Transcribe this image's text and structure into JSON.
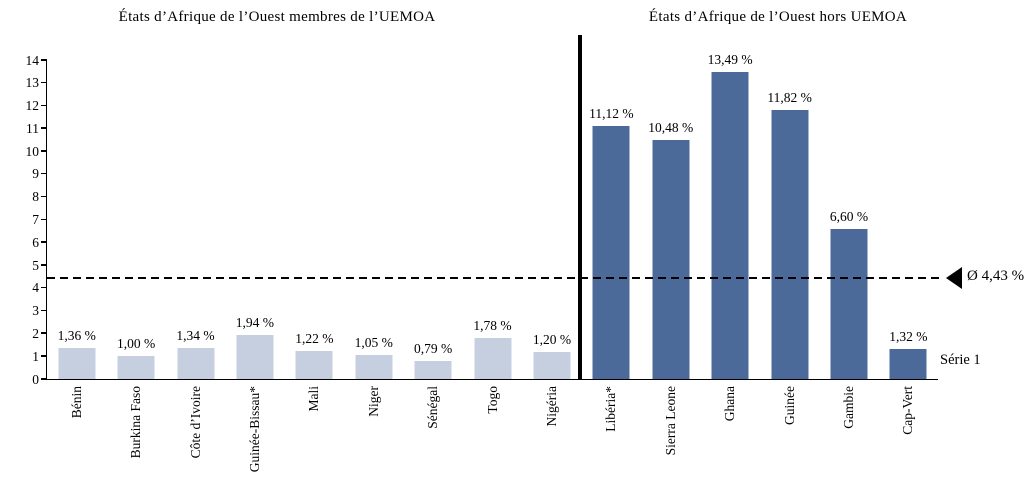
{
  "chart_data": {
    "type": "bar",
    "groups": [
      {
        "title": "États d’Afrique de l’Ouest membres de l’UEMOA",
        "count": 9,
        "bar_color": "#c6cfe0"
      },
      {
        "title": "États d’Afrique de l’Ouest hors UEMOA",
        "count": 6,
        "bar_color": "#4c6a99"
      }
    ],
    "categories": [
      "Bénin",
      "Burkina Faso",
      "Côte d’Ivoire",
      "Guinée-Bissau*",
      "Mali",
      "Niger",
      "Sénégal",
      "Togo",
      "Nigéria",
      "Libéria*",
      "Sierra Leone",
      "Ghana",
      "Guinée",
      "Gambie",
      "Cap-Vert"
    ],
    "values": [
      1.36,
      1.0,
      1.34,
      1.94,
      1.22,
      1.05,
      0.79,
      1.78,
      1.2,
      11.12,
      10.48,
      13.49,
      11.82,
      6.6,
      1.32
    ],
    "value_labels": [
      "1,36 %",
      "1,00 %",
      "1,34 %",
      "1,94 %",
      "1,22 %",
      "1,05 %",
      "0,79 %",
      "1,78 %",
      "1,20 %",
      "11,12 %",
      "10,48 %",
      "13,49 %",
      "11,82 %",
      "6,60 %",
      "1,32 %"
    ],
    "ylim": [
      0,
      14
    ],
    "y_ticks": [
      0,
      1,
      2,
      3,
      4,
      5,
      6,
      7,
      8,
      9,
      10,
      11,
      12,
      13,
      14
    ],
    "grid": "off",
    "reference_line": {
      "value": 4.43,
      "label": "Ø 4,43 %",
      "style": "dashed",
      "arrow": "left"
    },
    "legend": {
      "series_label": "Série 1",
      "position": "right-of-last-bar"
    }
  }
}
